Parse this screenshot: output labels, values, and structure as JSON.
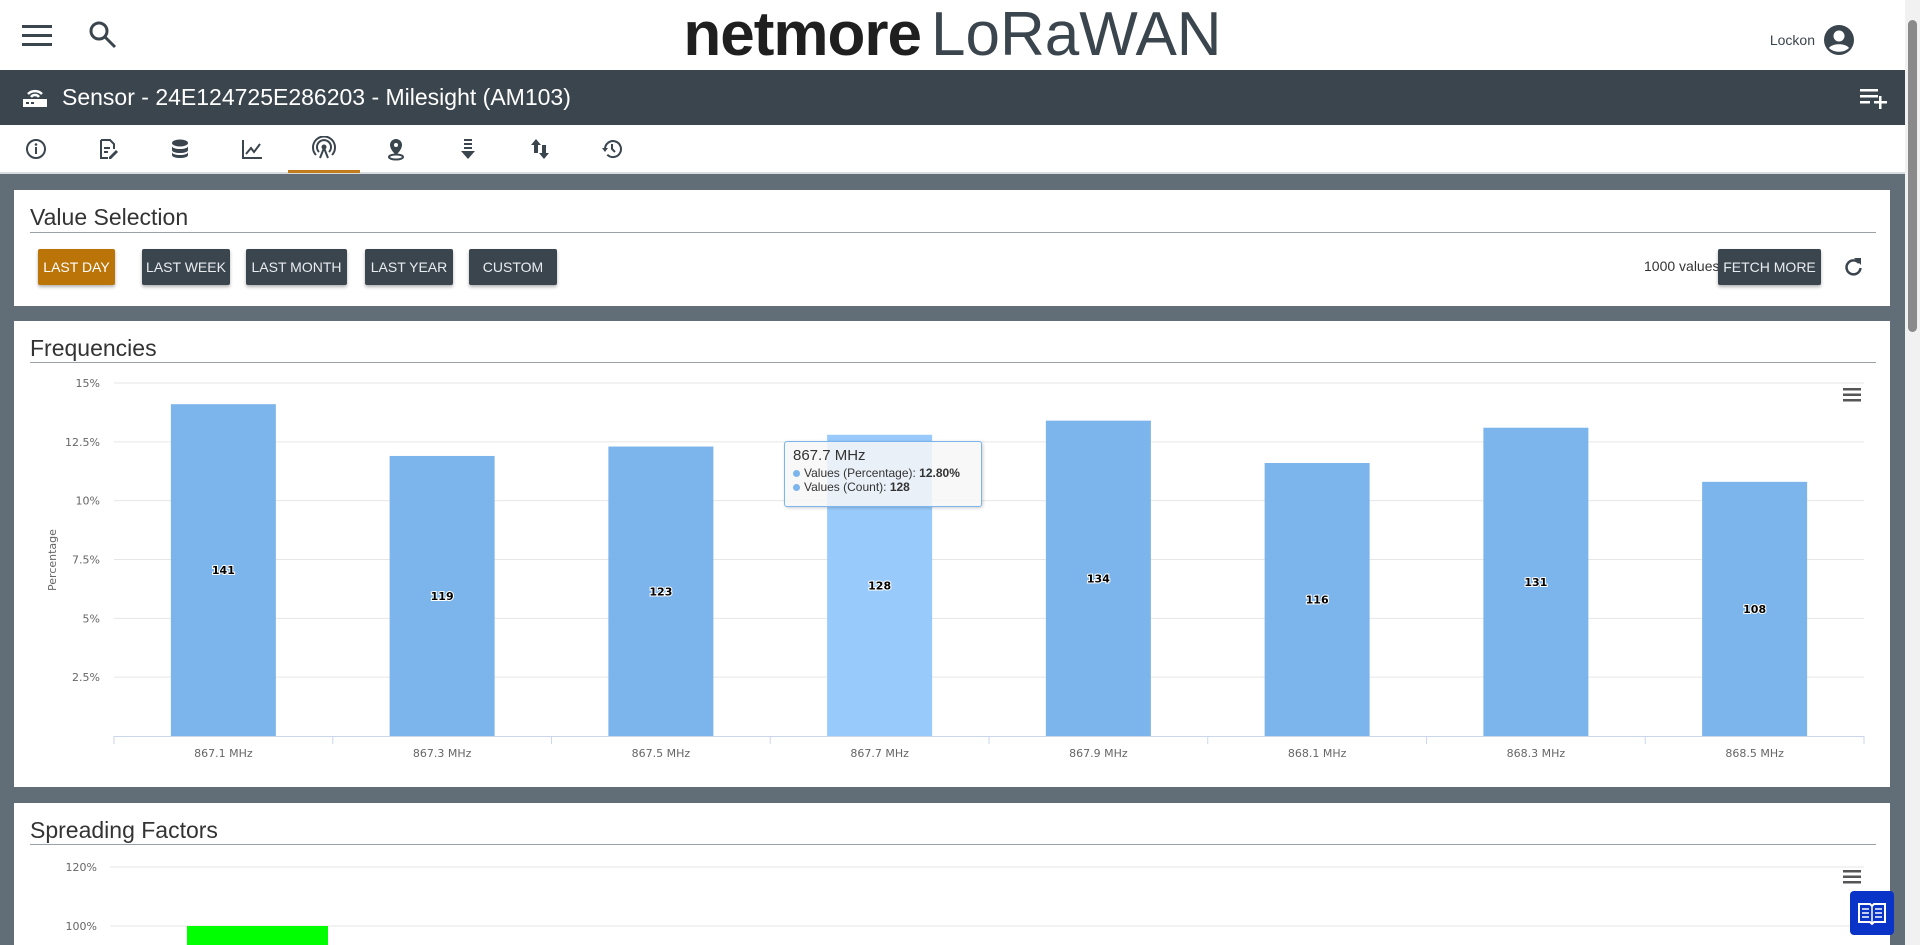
{
  "header": {
    "logo_bold": "netmore",
    "logo_light": "LoRaWAN",
    "user": "Lockon"
  },
  "titlebar": {
    "title": "Sensor - 24E124725E286203 - Milesight (AM103)"
  },
  "tabs": [
    {
      "icon": "info-icon"
    },
    {
      "icon": "edit-document-icon"
    },
    {
      "icon": "database-icon"
    },
    {
      "icon": "line-chart-icon"
    },
    {
      "icon": "antenna-icon",
      "active": true
    },
    {
      "icon": "location-pin-icon"
    },
    {
      "icon": "download-list-icon"
    },
    {
      "icon": "up-down-arrows-icon"
    },
    {
      "icon": "history-icon"
    }
  ],
  "value_selection": {
    "title": "Value Selection",
    "buttons": [
      "LAST DAY",
      "LAST WEEK",
      "LAST MONTH",
      "LAST YEAR",
      "CUSTOM"
    ],
    "active": "LAST DAY",
    "count_label": "1000 values",
    "fetch_more": "FETCH MORE"
  },
  "colors": {
    "accent": "#bb7408",
    "dark": "#3b454e",
    "bar": "#7cb5ec",
    "bar_hover": "#98cbfc",
    "sf_bar": "#00ff00"
  },
  "chart_data": [
    {
      "type": "bar",
      "title": "Frequencies",
      "ylabel": "Percentage",
      "ylim": [
        0,
        15
      ],
      "yticks": [
        "2.5%",
        "5%",
        "7.5%",
        "10%",
        "12.5%",
        "15%"
      ],
      "ytick_values": [
        2.5,
        5,
        7.5,
        10,
        12.5,
        15
      ],
      "categories": [
        "867.1 MHz",
        "867.3 MHz",
        "867.5 MHz",
        "867.7 MHz",
        "867.9 MHz",
        "868.1 MHz",
        "868.3 MHz",
        "868.5 MHz"
      ],
      "series": [
        {
          "name": "Values (Percentage)",
          "values": [
            14.1,
            11.9,
            12.3,
            12.8,
            13.4,
            11.6,
            13.1,
            10.8
          ]
        },
        {
          "name": "Values (Count)",
          "values": [
            141,
            119,
            123,
            128,
            134,
            116,
            131,
            108
          ]
        }
      ],
      "hovered": 3,
      "tooltip": {
        "title": "867.7 MHz",
        "line1_label": "Values (Percentage): ",
        "line1_value": "12.80%",
        "line2_label": "Values (Count): ",
        "line2_value": "128"
      }
    },
    {
      "type": "bar",
      "title": "Spreading Factors",
      "visible_yticks": [
        "120%",
        "100%"
      ],
      "ytick_values": [
        120,
        100
      ],
      "values": [
        100
      ]
    }
  ]
}
